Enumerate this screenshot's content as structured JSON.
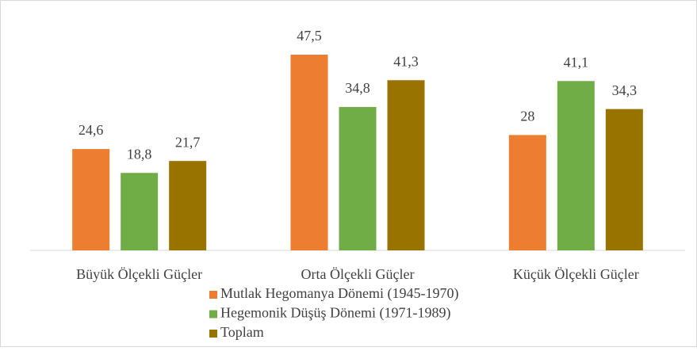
{
  "chart_data": {
    "type": "bar",
    "categories": [
      "Büyük Ölçekli Güçler",
      "Orta Ölçekli Güçler",
      "Küçük Ölçekli Güçler"
    ],
    "series": [
      {
        "name": "Mutlak Hegomanya Dönemi (1945-1970)",
        "color": "#ed7d31",
        "values": [
          24.6,
          47.5,
          28
        ],
        "value_labels": [
          "24,6",
          "47,5",
          "28"
        ]
      },
      {
        "name": "Hegemonik Düşüş Dönemi (1971-1989)",
        "color": "#70ad47",
        "values": [
          18.8,
          34.8,
          41.1
        ],
        "value_labels": [
          "18,8",
          "34,8",
          "41,1"
        ]
      },
      {
        "name": "Toplam",
        "color": "#997300",
        "values": [
          21.7,
          41.3,
          34.3
        ],
        "value_labels": [
          "21,7",
          "41,3",
          "34,3"
        ]
      }
    ],
    "ylim": [
      0,
      50
    ],
    "grid": false,
    "legend": "bottom"
  }
}
